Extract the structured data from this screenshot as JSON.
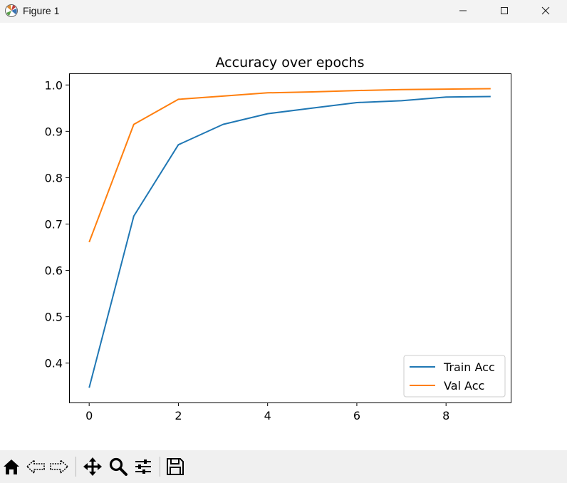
{
  "window": {
    "title": "Figure 1",
    "app_icon": "matplotlib-logo-icon",
    "controls": [
      "minimize-icon",
      "maximize-icon",
      "close-icon"
    ]
  },
  "toolbar": {
    "tools": [
      "home-icon",
      "back-arrow-icon",
      "forward-arrow-icon",
      "pan-move-icon",
      "zoom-magnifier-icon",
      "configure-subplots-icon",
      "save-disk-icon"
    ]
  },
  "chart_data": {
    "type": "line",
    "title": "Accuracy over epochs",
    "xlabel": "",
    "ylabel": "",
    "x": [
      0,
      1,
      2,
      3,
      4,
      5,
      6,
      7,
      8,
      9
    ],
    "xlim": [
      -0.45,
      9.45
    ],
    "ylim": [
      0.315,
      1.025
    ],
    "xticks": [
      0,
      2,
      4,
      6,
      8
    ],
    "yticks": [
      0.4,
      0.5,
      0.6,
      0.7,
      0.8,
      0.9,
      1.0
    ],
    "ytick_labels": [
      "0.4",
      "0.5",
      "0.6",
      "0.7",
      "0.8",
      "0.9",
      "1.0"
    ],
    "grid": false,
    "legend_position": "lower-right",
    "series": [
      {
        "name": "Train Acc",
        "color": "#1f77b4",
        "values": [
          0.347,
          0.717,
          0.871,
          0.915,
          0.938,
          0.95,
          0.962,
          0.966,
          0.974,
          0.975
        ]
      },
      {
        "name": "Val Acc",
        "color": "#ff7f0e",
        "values": [
          0.661,
          0.915,
          0.969,
          0.976,
          0.983,
          0.985,
          0.988,
          0.99,
          0.991,
          0.992
        ]
      }
    ]
  }
}
